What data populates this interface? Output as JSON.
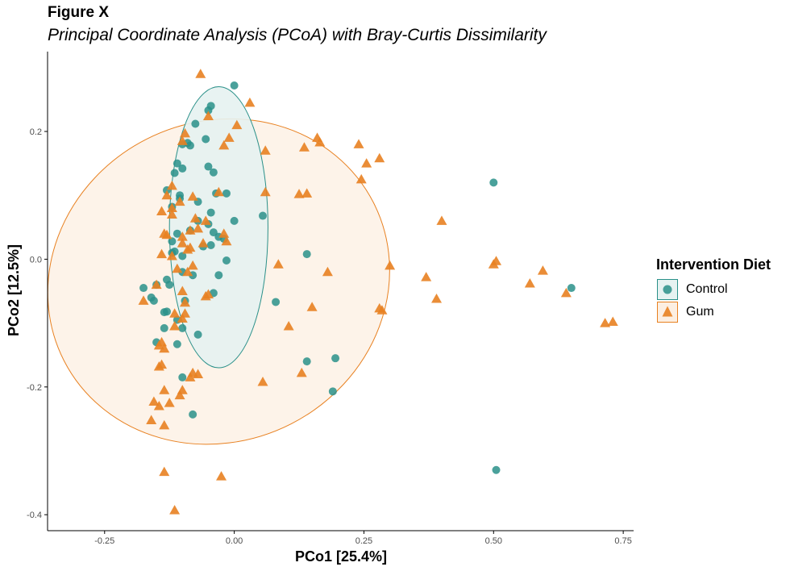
{
  "figure_label": "Figure X",
  "colors": {
    "control": "#2a9089",
    "gum": "#e88121",
    "control_fill": "#e6f2f1",
    "gum_fill": "#fcefe2",
    "axis": "#000000"
  },
  "chart_data": {
    "type": "scatter",
    "title": "Principal Coordinate Analysis (PCoA) with Bray-Curtis Dissimilarity",
    "xlabel": "PCo1 [25.4%]",
    "ylabel": "PCo2 [12.5%]",
    "xlim": [
      -0.36,
      0.77
    ],
    "ylim": [
      -0.425,
      0.325
    ],
    "x_ticks": [
      -0.25,
      0,
      0.25,
      0.5,
      0.75
    ],
    "x_tick_labels": [
      "-0.25",
      "0.00",
      "0.25",
      "0.50",
      "0.75"
    ],
    "y_ticks": [
      -0.4,
      -0.2,
      0,
      0.2
    ],
    "y_tick_labels": [
      "-0.4",
      "-0.2",
      "0.0",
      "0.2"
    ],
    "grid": false,
    "legend": {
      "title": "Intervention Diet",
      "position": "right",
      "entries": [
        "Control",
        "Gum"
      ]
    },
    "ellipses": [
      {
        "series": "Control",
        "center": [
          -0.03,
          0.05
        ],
        "half_width": 0.095,
        "half_height": 0.22
      },
      {
        "series": "Gum",
        "center": [
          -0.03,
          -0.035
        ],
        "half_width": 0.335,
        "half_height": 0.25,
        "rotation_deg": -27
      }
    ],
    "series": [
      {
        "name": "Control",
        "marker": "circle",
        "points": [
          [
            0,
            0.272
          ],
          [
            -0.05,
            0.233
          ],
          [
            -0.045,
            0.24
          ],
          [
            -0.075,
            0.212
          ],
          [
            -0.055,
            0.188
          ],
          [
            -0.1,
            0.18
          ],
          [
            -0.09,
            0.182
          ],
          [
            -0.085,
            0.178
          ],
          [
            -0.11,
            0.15
          ],
          [
            -0.115,
            0.135
          ],
          [
            -0.1,
            0.142
          ],
          [
            -0.05,
            0.145
          ],
          [
            -0.04,
            0.136
          ],
          [
            -0.13,
            0.108
          ],
          [
            -0.105,
            0.1
          ],
          [
            -0.035,
            0.103
          ],
          [
            -0.015,
            0.103
          ],
          [
            -0.105,
            0.095
          ],
          [
            -0.07,
            0.09
          ],
          [
            -0.12,
            0.082
          ],
          [
            -0.045,
            0.073
          ],
          [
            0.055,
            0.068
          ],
          [
            -0.07,
            0.06
          ],
          [
            -0.085,
            0.045
          ],
          [
            -0.05,
            0.055
          ],
          [
            0,
            0.06
          ],
          [
            -0.11,
            0.04
          ],
          [
            -0.04,
            0.042
          ],
          [
            -0.03,
            0.035
          ],
          [
            -0.02,
            0.032
          ],
          [
            -0.12,
            0.028
          ],
          [
            -0.06,
            0.02
          ],
          [
            -0.045,
            0.022
          ],
          [
            -0.12,
            0.01
          ],
          [
            -0.115,
            0.012
          ],
          [
            -0.1,
            0.005
          ],
          [
            -0.015,
            -0.002
          ],
          [
            0.14,
            0.008
          ],
          [
            -0.1,
            -0.02
          ],
          [
            -0.08,
            -0.025
          ],
          [
            -0.13,
            -0.032
          ],
          [
            -0.03,
            -0.025
          ],
          [
            -0.15,
            -0.04
          ],
          [
            -0.175,
            -0.045
          ],
          [
            -0.125,
            -0.04
          ],
          [
            -0.04,
            -0.053
          ],
          [
            -0.16,
            -0.06
          ],
          [
            -0.155,
            -0.065
          ],
          [
            -0.095,
            -0.065
          ],
          [
            0.08,
            -0.067
          ],
          [
            -0.135,
            -0.083
          ],
          [
            -0.13,
            -0.082
          ],
          [
            -0.11,
            -0.095
          ],
          [
            -0.135,
            -0.108
          ],
          [
            -0.1,
            -0.108
          ],
          [
            -0.07,
            -0.118
          ],
          [
            -0.15,
            -0.13
          ],
          [
            -0.11,
            -0.133
          ],
          [
            -0.1,
            -0.185
          ],
          [
            -0.08,
            -0.243
          ],
          [
            0.14,
            -0.16
          ],
          [
            0.195,
            -0.155
          ],
          [
            0.19,
            -0.207
          ],
          [
            0.5,
            0.12
          ],
          [
            0.65,
            -0.045
          ],
          [
            0.505,
            -0.33
          ]
        ]
      },
      {
        "name": "Gum",
        "marker": "triangle",
        "points": [
          [
            -0.065,
            0.29
          ],
          [
            0.03,
            0.245
          ],
          [
            -0.05,
            0.224
          ],
          [
            0.005,
            0.21
          ],
          [
            -0.095,
            0.197
          ],
          [
            -0.1,
            0.185
          ],
          [
            -0.02,
            0.178
          ],
          [
            -0.01,
            0.19
          ],
          [
            0.06,
            0.17
          ],
          [
            0.135,
            0.175
          ],
          [
            0.16,
            0.19
          ],
          [
            0.165,
            0.183
          ],
          [
            0.24,
            0.18
          ],
          [
            0.28,
            0.158
          ],
          [
            0.255,
            0.15
          ],
          [
            0.245,
            0.125
          ],
          [
            0.06,
            0.105
          ],
          [
            0.125,
            0.102
          ],
          [
            0.14,
            0.103
          ],
          [
            -0.12,
            0.115
          ],
          [
            -0.13,
            0.1
          ],
          [
            -0.08,
            0.098
          ],
          [
            -0.03,
            0.105
          ],
          [
            -0.105,
            0.09
          ],
          [
            -0.12,
            0.08
          ],
          [
            -0.12,
            0.07
          ],
          [
            -0.14,
            0.075
          ],
          [
            -0.075,
            0.064
          ],
          [
            -0.055,
            0.06
          ],
          [
            -0.085,
            0.045
          ],
          [
            -0.07,
            0.048
          ],
          [
            -0.135,
            0.04
          ],
          [
            -0.13,
            0.038
          ],
          [
            -0.1,
            0.035
          ],
          [
            -0.02,
            0.04
          ],
          [
            -0.015,
            0.028
          ],
          [
            -0.1,
            0.025
          ],
          [
            -0.06,
            0.025
          ],
          [
            -0.085,
            0.018
          ],
          [
            -0.09,
            0.015
          ],
          [
            -0.14,
            0.008
          ],
          [
            -0.12,
            0.005
          ],
          [
            0.4,
            0.06
          ],
          [
            0.085,
            -0.008
          ],
          [
            -0.08,
            -0.01
          ],
          [
            -0.11,
            -0.015
          ],
          [
            -0.09,
            -0.02
          ],
          [
            0.18,
            -0.02
          ],
          [
            0.3,
            -0.01
          ],
          [
            0.5,
            -0.008
          ],
          [
            0.505,
            -0.003
          ],
          [
            0.595,
            -0.018
          ],
          [
            0.37,
            -0.028
          ],
          [
            0.57,
            -0.038
          ],
          [
            -0.15,
            -0.04
          ],
          [
            -0.1,
            -0.05
          ],
          [
            -0.05,
            -0.055
          ],
          [
            -0.055,
            -0.058
          ],
          [
            0.39,
            -0.062
          ],
          [
            0.64,
            -0.053
          ],
          [
            -0.175,
            -0.065
          ],
          [
            -0.095,
            -0.068
          ],
          [
            0.15,
            -0.075
          ],
          [
            0.28,
            -0.077
          ],
          [
            0.285,
            -0.08
          ],
          [
            -0.095,
            -0.085
          ],
          [
            -0.115,
            -0.085
          ],
          [
            -0.1,
            -0.093
          ],
          [
            0.73,
            -0.098
          ],
          [
            0.715,
            -0.1
          ],
          [
            0.105,
            -0.105
          ],
          [
            -0.115,
            -0.105
          ],
          [
            -0.145,
            -0.135
          ],
          [
            -0.14,
            -0.13
          ],
          [
            -0.135,
            -0.14
          ],
          [
            -0.14,
            -0.165
          ],
          [
            -0.145,
            -0.168
          ],
          [
            -0.08,
            -0.178
          ],
          [
            -0.085,
            -0.185
          ],
          [
            -0.07,
            -0.18
          ],
          [
            0.055,
            -0.192
          ],
          [
            0.13,
            -0.178
          ],
          [
            -0.135,
            -0.205
          ],
          [
            -0.1,
            -0.205
          ],
          [
            -0.105,
            -0.213
          ],
          [
            -0.125,
            -0.225
          ],
          [
            -0.155,
            -0.223
          ],
          [
            -0.145,
            -0.23
          ],
          [
            -0.16,
            -0.252
          ],
          [
            -0.135,
            -0.26
          ],
          [
            -0.135,
            -0.333
          ],
          [
            -0.025,
            -0.34
          ],
          [
            -0.115,
            -0.393
          ]
        ]
      }
    ]
  }
}
